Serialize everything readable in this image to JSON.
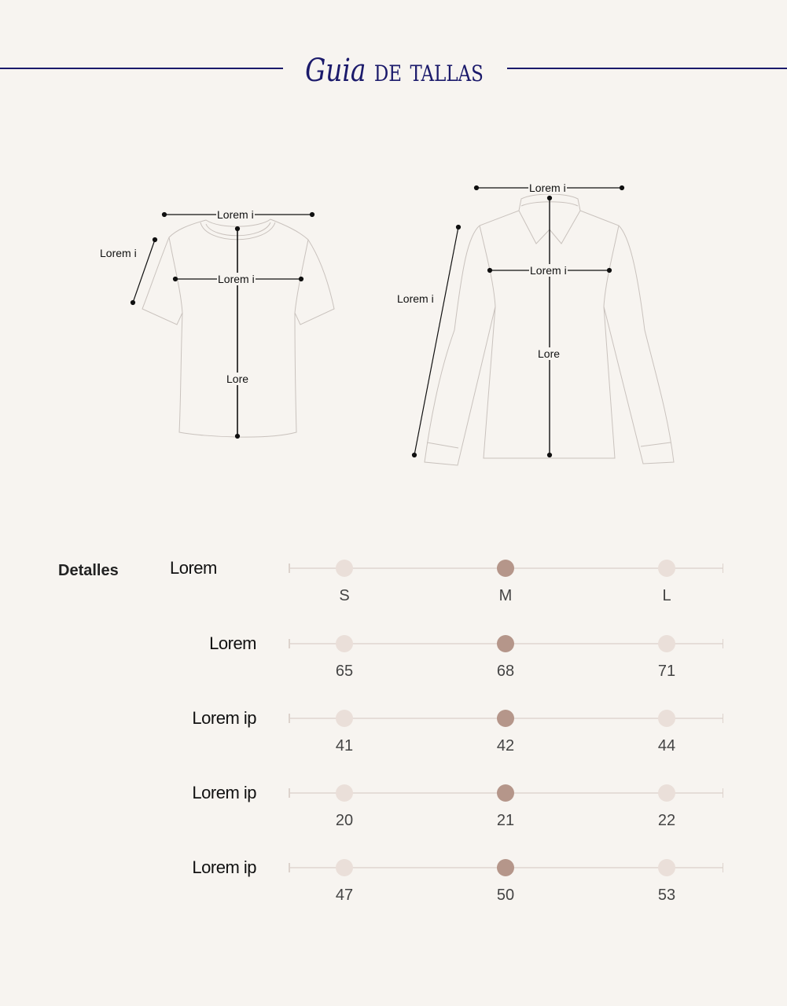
{
  "header": {
    "title_first": "Guia",
    "title_rest": "de tallas",
    "color": "#1b1a6b"
  },
  "tshirt": {
    "labels": {
      "shoulder": "Lorem i",
      "sleeve": "Lorem i",
      "chest": "Lorem i",
      "length": "Lore"
    }
  },
  "shirt": {
    "labels": {
      "shoulder": "Lorem i",
      "sleeve": "Lorem i",
      "chest": "Lorem i",
      "length": "Lore"
    }
  },
  "details": {
    "heading": "Detalles",
    "selected_color": "#b5968a",
    "unselected_color": "#eadfd9",
    "rows": [
      {
        "label": "Lorem",
        "values": [
          "S",
          "M",
          "L"
        ],
        "selected_index": 1
      },
      {
        "label": "Lorem",
        "values": [
          "65",
          "68",
          "71"
        ],
        "selected_index": 1
      },
      {
        "label": "Lorem ip",
        "values": [
          "41",
          "42",
          "44"
        ],
        "selected_index": 1
      },
      {
        "label": "Lorem ip",
        "values": [
          "20",
          "21",
          "22"
        ],
        "selected_index": 1
      },
      {
        "label": "Lorem ip",
        "values": [
          "47",
          "50",
          "53"
        ],
        "selected_index": 1
      }
    ]
  }
}
